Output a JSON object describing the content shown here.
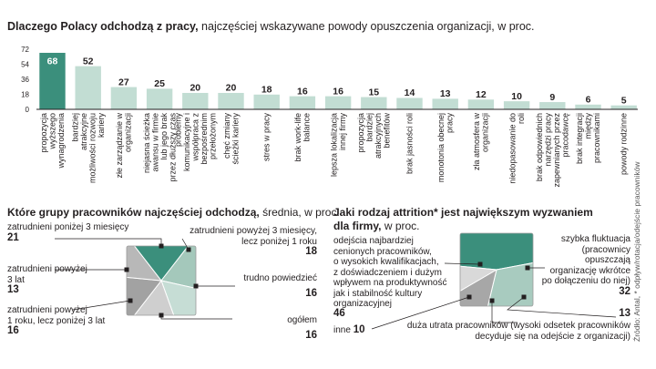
{
  "chart_data": [
    {
      "type": "bar",
      "title": "Dlaczego Polacy odchodzą z pracy,",
      "subtitle": "najczęściej wskazywane powody opuszczenia organizacji, w proc.",
      "yticks": [
        0,
        18,
        36,
        54,
        72
      ],
      "ylim": [
        0,
        72
      ],
      "categories": [
        "propozycja wyższego wynagrodzenia",
        "bardziej atrakcyjne możliwości rozwoju kariery",
        "złe zarządzanie w organizacji",
        "niejasna ścieżka awansu w firmie lub jego brak przez dłuższy czas",
        "problemy komunikacyjne i współpraca z bezpośrednim przełożonym",
        "chęć zmiany ścieżki kariery",
        "stres w pracy",
        "brak work-life balance",
        "lepsza lokalizacja innej firmy",
        "propozycja bardziej atrakcyjnych benefitów",
        "brak jasności roli",
        "monotonia obecnej pracy",
        "zła atmosfera w organizacji",
        "niedopasowanie do roli",
        "brak odpowiednich narzędzi pracy zapewnianych przez pracodawcę",
        "brak integracji między pracownikami",
        "powody rodzinne"
      ],
      "values": [
        68,
        52,
        27,
        25,
        20,
        20,
        18,
        16,
        16,
        15,
        14,
        13,
        12,
        10,
        9,
        6,
        5
      ],
      "colors": {
        "highlight": "#3b8f7c",
        "bar": "#c2ddd3",
        "zero_line": "#231f20"
      }
    },
    {
      "type": "pie",
      "title": "Które grupy pracowników najczęściej odchodzą,",
      "subtitle": "średnia, w proc.",
      "slices": [
        {
          "label": "zatrudnieni poniżej 3 miesięcy",
          "value": 21,
          "color": "#3b8f7c"
        },
        {
          "label": "zatrudnieni powyżej 3 miesięcy, lecz poniżej 1 roku",
          "value": 18,
          "color": "#a4c8bb"
        },
        {
          "label": "trudno powiedzieć",
          "value": 16,
          "color": "#c6ddd5"
        },
        {
          "label": "ogółem",
          "value": 16,
          "color": "#cfcfcf"
        },
        {
          "label": "zatrudnieni powyżej 1 roku, lecz poniżej 3 lat",
          "value": 16,
          "color": "#a2a2a2"
        },
        {
          "label": "zatrudnieni powyżej 3 lat",
          "value": 13,
          "color": "#b8b8b8"
        }
      ],
      "labels": {
        "below3m": [
          "zatrudnieni poniżej 3 miesięcy"
        ],
        "above3m": [
          "zatrudnieni powyżej 3 miesięcy,",
          "lecz poniżej 1 roku"
        ],
        "above3y": [
          "zatrudnieni powyżej",
          "3 lat"
        ],
        "above1y": [
          "zatrudnieni powyżej",
          "1 roku, lecz poniżej 3 lat"
        ],
        "hard": [
          "trudno powiedzieć"
        ],
        "total": [
          "ogółem"
        ]
      },
      "values_text": {
        "below3m": "21",
        "above3m": "18",
        "above3y": "13",
        "above1y": "16",
        "hard": "16",
        "total": "16"
      }
    },
    {
      "type": "pie",
      "title": "Jaki rodzaj attrition* jest największym wyzwaniem",
      "title2": "dla firmy,",
      "subtitle": "w proc.",
      "slices": [
        {
          "label": "odejścia najbardziej cenionych pracowników, o wysokich kwalifikacjach, z doświadczeniem i dużym wpływem na produktywność jak i stabilność kultury organizacyjnej",
          "value": 46,
          "color": "#3b8f7c"
        },
        {
          "label": "szybka fluktuacja (pracownicy opuszczają organizację wkrótce po dołączeniu do niej)",
          "value": 32,
          "color": "#a8cbbf"
        },
        {
          "label": "duża utrata pracowników (wysoki odsetek pracowników decyduje się na odejście z organizacji)",
          "value": 13,
          "color": "#a7a7a7"
        },
        {
          "label": "inne",
          "value": 10,
          "color": "#d9d9d9"
        }
      ],
      "labels": {
        "cenieni": [
          "odejścia najbardziej",
          "cenionych pracowników,",
          "o wysokich kwalifikacjach,",
          "z doświadczeniem i dużym",
          "wpływem na produktywność",
          "jak i stabilność kultury",
          "organizacyjnej"
        ],
        "szybka": [
          "szybka fluktuacja",
          "(pracownicy",
          "opuszczają",
          "organizację wkrótce",
          "po dołączeniu do niej)"
        ],
        "duza": [
          "duża utrata pracowników (wysoki odsetek pracowników",
          "decyduje się na odejście z organizacji)"
        ],
        "inne": "inne"
      },
      "values_text": {
        "cenieni": "46",
        "szybka": "32",
        "duza": "13",
        "inne": "10"
      }
    }
  ],
  "source": "Źródło: Antal, * odpływ/rotacja/odejście pracowników"
}
